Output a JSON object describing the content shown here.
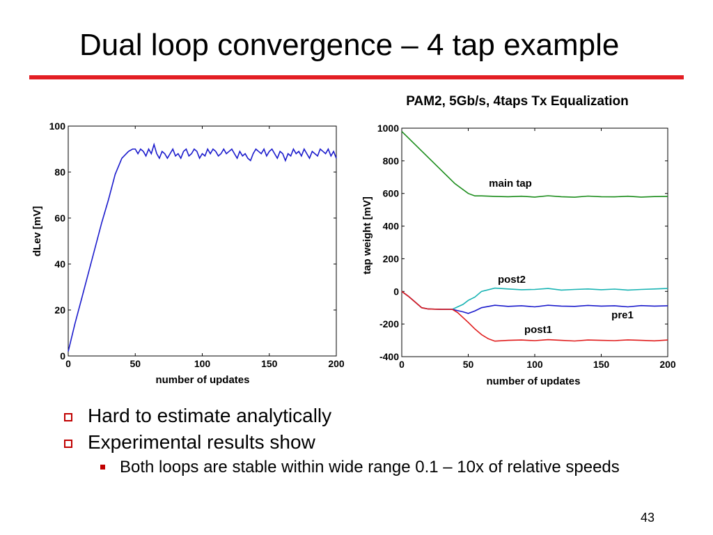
{
  "slide": {
    "title": "Dual loop convergence – 4 tap example",
    "page_number": "43",
    "bullets": [
      {
        "text": "Hard to estimate analytically",
        "level": 1
      },
      {
        "text": "Experimental results show",
        "level": 1
      },
      {
        "text": "Both loops are stable within wide range 0.1 – 10x of relative speeds",
        "level": 2
      }
    ],
    "accent_color": "#e31e24",
    "bullet_color": "#c00000"
  },
  "chart_data": [
    {
      "type": "line",
      "title": "",
      "xlabel": "number of updates",
      "ylabel": "dLev [mV]",
      "xlim": [
        0,
        200
      ],
      "ylim": [
        0,
        100
      ],
      "xticks": [
        0,
        50,
        100,
        150,
        200
      ],
      "yticks": [
        0,
        20,
        40,
        60,
        80,
        100
      ],
      "series": [
        {
          "color": "#1a1acc",
          "x": [
            0,
            5,
            10,
            15,
            20,
            25,
            30,
            35,
            40,
            45,
            48,
            50,
            52,
            54,
            56,
            58,
            60,
            62,
            64,
            66,
            68,
            70,
            72,
            74,
            76,
            78,
            80,
            82,
            84,
            86,
            88,
            90,
            92,
            94,
            96,
            98,
            100,
            102,
            104,
            106,
            108,
            110,
            112,
            114,
            116,
            118,
            120,
            122,
            124,
            126,
            128,
            130,
            132,
            134,
            136,
            138,
            140,
            142,
            144,
            146,
            148,
            150,
            152,
            154,
            156,
            158,
            160,
            162,
            164,
            166,
            168,
            170,
            172,
            174,
            176,
            178,
            180,
            182,
            184,
            186,
            188,
            190,
            192,
            194,
            196,
            198,
            200
          ],
          "y": [
            2,
            14,
            25,
            36,
            47,
            58,
            68,
            79,
            86,
            89,
            90,
            90,
            88,
            90,
            89,
            87,
            90,
            88,
            92,
            88,
            86,
            89,
            88,
            86,
            88,
            90,
            87,
            88,
            86,
            89,
            90,
            87,
            88,
            90,
            89,
            86,
            88,
            87,
            90,
            88,
            90,
            89,
            87,
            88,
            90,
            88,
            89,
            90,
            88,
            86,
            89,
            87,
            88,
            86,
            85,
            88,
            90,
            89,
            88,
            90,
            87,
            89,
            90,
            88,
            86,
            89,
            88,
            85,
            88,
            87,
            90,
            88,
            89,
            87,
            90,
            88,
            86,
            89,
            88,
            87,
            90,
            89,
            88,
            90,
            87,
            89,
            86
          ]
        }
      ]
    },
    {
      "type": "line",
      "title": "PAM2, 5Gb/s, 4taps Tx Equalization",
      "xlabel": "number of updates",
      "ylabel": "tap weight [mV]",
      "xlim": [
        0,
        200
      ],
      "ylim": [
        -400,
        1000
      ],
      "xticks": [
        0,
        50,
        100,
        150,
        200
      ],
      "yticks": [
        -400,
        -200,
        0,
        200,
        400,
        600,
        800,
        1000
      ],
      "series": [
        {
          "name": "main tap",
          "color": "#1a8c1a",
          "x": [
            0,
            10,
            20,
            30,
            40,
            50,
            55,
            60,
            70,
            80,
            90,
            100,
            110,
            120,
            130,
            140,
            150,
            160,
            170,
            180,
            190,
            200
          ],
          "y": [
            980,
            900,
            820,
            740,
            660,
            600,
            585,
            585,
            582,
            580,
            583,
            578,
            586,
            580,
            577,
            584,
            580,
            579,
            583,
            578,
            581,
            582
          ]
        },
        {
          "name": "post2",
          "color": "#17b3b3",
          "x": [
            0,
            5,
            10,
            15,
            20,
            30,
            38,
            42,
            46,
            50,
            55,
            60,
            70,
            80,
            90,
            100,
            110,
            120,
            130,
            140,
            150,
            160,
            170,
            180,
            190,
            200
          ],
          "y": [
            0,
            -30,
            -65,
            -100,
            -108,
            -110,
            -110,
            -95,
            -80,
            -55,
            -35,
            0,
            20,
            15,
            10,
            12,
            18,
            8,
            12,
            15,
            10,
            14,
            8,
            12,
            15,
            18
          ]
        },
        {
          "name": "pre1",
          "color": "#1a1acc",
          "x": [
            0,
            5,
            10,
            15,
            20,
            30,
            38,
            42,
            46,
            50,
            55,
            60,
            70,
            80,
            90,
            100,
            110,
            120,
            130,
            140,
            150,
            160,
            170,
            180,
            190,
            200
          ],
          "y": [
            0,
            -30,
            -65,
            -100,
            -108,
            -110,
            -110,
            -118,
            -125,
            -135,
            -120,
            -100,
            -85,
            -92,
            -88,
            -95,
            -85,
            -90,
            -92,
            -86,
            -90,
            -88,
            -95,
            -87,
            -90,
            -88
          ]
        },
        {
          "name": "post1",
          "color": "#e01a1a",
          "x": [
            0,
            5,
            10,
            15,
            20,
            30,
            38,
            42,
            46,
            50,
            55,
            60,
            65,
            70,
            80,
            90,
            100,
            110,
            120,
            130,
            140,
            150,
            160,
            170,
            180,
            190,
            200
          ],
          "y": [
            0,
            -30,
            -65,
            -100,
            -108,
            -110,
            -110,
            -130,
            -160,
            -190,
            -230,
            -265,
            -290,
            -305,
            -300,
            -298,
            -302,
            -296,
            -300,
            -304,
            -298,
            -300,
            -302,
            -297,
            -300,
            -303,
            -298
          ]
        }
      ]
    }
  ]
}
